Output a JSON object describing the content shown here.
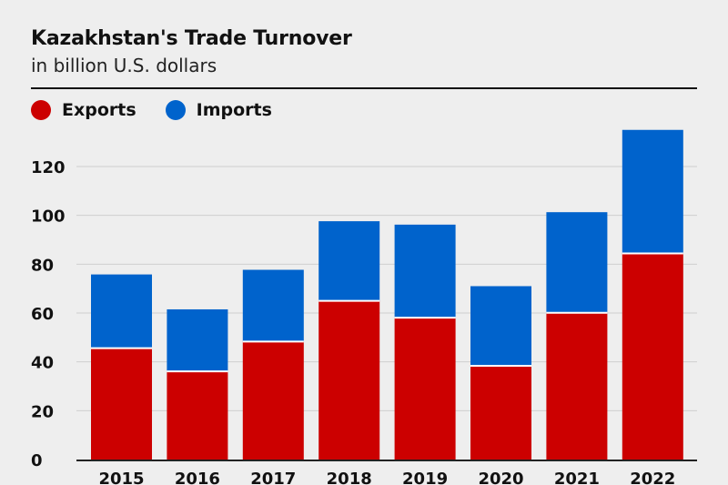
{
  "chart_data": {
    "type": "bar",
    "stacked": true,
    "title": "Kazakhstan's Trade Turnover",
    "subtitle": "in billion U.S. dollars",
    "categories": [
      "2015",
      "2016",
      "2017",
      "2018",
      "2019",
      "2020",
      "2021",
      "2022"
    ],
    "series": [
      {
        "name": "Exports",
        "color": "#cc0000",
        "values": [
          45.6,
          36.1,
          48.3,
          65.0,
          58.1,
          38.4,
          60.1,
          84.4
        ]
      },
      {
        "name": "Imports",
        "color": "#0063cc",
        "values": [
          30.2,
          25.4,
          29.4,
          32.6,
          38.1,
          32.6,
          41.2,
          50.6
        ]
      }
    ],
    "ylim": [
      0,
      130
    ],
    "yticks": [
      "0",
      "20",
      "40",
      "60",
      "80",
      "100",
      "120"
    ],
    "grid": true,
    "legend": "top-left"
  }
}
